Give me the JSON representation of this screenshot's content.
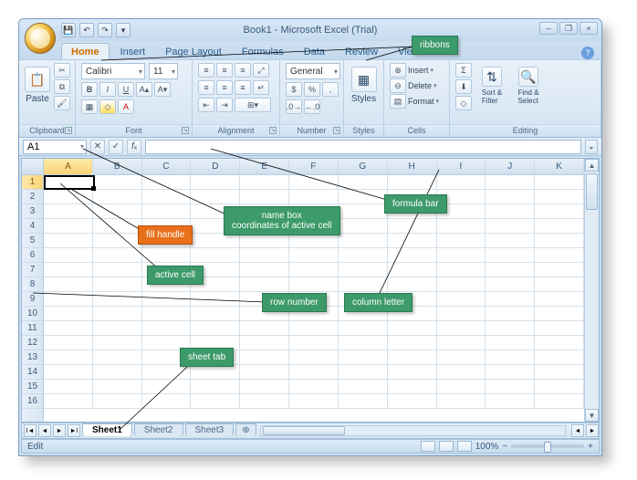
{
  "window": {
    "title": "Book1 - Microsoft Excel (Trial)"
  },
  "qat": {
    "save": "💾",
    "undo": "↶",
    "redo": "↷"
  },
  "tabs": [
    "Home",
    "Insert",
    "Page Layout",
    "Formulas",
    "Data",
    "Review",
    "View"
  ],
  "ribbon": {
    "clipboard": {
      "label": "Clipboard",
      "paste": "Paste"
    },
    "font": {
      "label": "Font",
      "name": "Calibri",
      "size": "11"
    },
    "alignment": {
      "label": "Alignment"
    },
    "number": {
      "label": "Number",
      "format": "General"
    },
    "styles": {
      "label": "Styles",
      "btn": "Styles"
    },
    "cells": {
      "label": "Cells",
      "insert": "Insert",
      "delete": "Delete",
      "format": "Format"
    },
    "editing": {
      "label": "Editing",
      "sort": "Sort &\nFilter",
      "find": "Find &\nSelect"
    }
  },
  "namebox": "A1",
  "columns": [
    "A",
    "B",
    "C",
    "D",
    "E",
    "F",
    "G",
    "H",
    "I",
    "J",
    "K"
  ],
  "rows": [
    "1",
    "2",
    "3",
    "4",
    "5",
    "6",
    "7",
    "8",
    "9",
    "10",
    "11",
    "12",
    "13",
    "14",
    "15",
    "16"
  ],
  "sheets": [
    "Sheet1",
    "Sheet2",
    "Sheet3"
  ],
  "status": {
    "mode": "Edit",
    "zoom": "100%"
  },
  "annotations": {
    "ribbons": "ribbons",
    "formula_bar": "formula bar",
    "name_box": "name box\ncoordinates of active cell",
    "fill_handle": "fill handle",
    "active_cell": "active cell",
    "row_number": "row number",
    "column_letter": "column letter",
    "sheet_tab": "sheet tab"
  },
  "colors": {
    "callout_green": "#3d9a6a",
    "callout_orange": "#e8701a",
    "window_chrome": "#cfe0f0",
    "active_tab_text": "#d06a00"
  }
}
